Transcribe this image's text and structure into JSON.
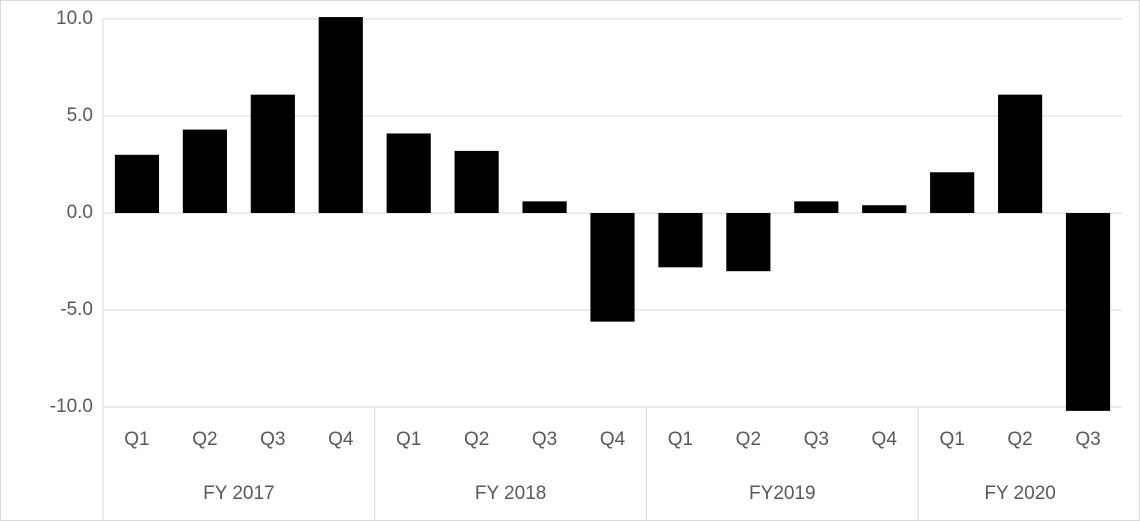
{
  "chart_data": {
    "type": "bar",
    "groups": [
      {
        "label": "FY 2017",
        "categories": [
          "Q1",
          "Q2",
          "Q3",
          "Q4"
        ]
      },
      {
        "label": "FY 2018",
        "categories": [
          "Q1",
          "Q2",
          "Q3",
          "Q4"
        ]
      },
      {
        "label": "FY2019",
        "categories": [
          "Q1",
          "Q2",
          "Q3",
          "Q4"
        ]
      },
      {
        "label": "FY 2020",
        "categories": [
          "Q1",
          "Q2",
          "Q3"
        ]
      }
    ],
    "values": [
      3.0,
      4.3,
      6.1,
      10.1,
      4.1,
      3.2,
      0.6,
      -5.6,
      -2.8,
      -3.0,
      0.6,
      0.4,
      2.1,
      6.1,
      -10.2
    ],
    "color": "#000000",
    "ylim": [
      -10,
      10
    ],
    "yticks": [
      {
        "value": -10,
        "label": "-10.0"
      },
      {
        "value": -5,
        "label": "-5.0"
      },
      {
        "value": 0,
        "label": "0.0"
      },
      {
        "value": 5,
        "label": "5.0"
      },
      {
        "value": 10,
        "label": "10.0"
      }
    ],
    "grid": true
  }
}
